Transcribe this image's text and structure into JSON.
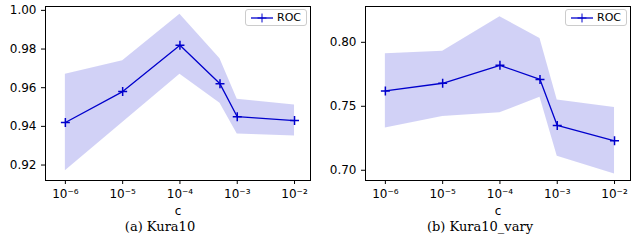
{
  "chart_data": [
    {
      "type": "line",
      "title": "(a) Kura10",
      "xlabel": "c",
      "log": "x",
      "grid": false,
      "legend": "upper right",
      "x": [
        1e-06,
        1e-05,
        0.0001,
        0.0005,
        0.001,
        0.01
      ],
      "xlim": [
        4.5e-07,
        0.019
      ],
      "xticks": [
        {
          "value": 1e-06,
          "label": "10⁻⁶"
        },
        {
          "value": 1e-05,
          "label": "10⁻⁵"
        },
        {
          "value": 0.0001,
          "label": "10⁻⁴"
        },
        {
          "value": 0.001,
          "label": "10⁻³"
        },
        {
          "value": 0.01,
          "label": "10⁻²"
        }
      ],
      "ylim": [
        0.912,
        1.002
      ],
      "yticks": [
        0.92,
        0.94,
        0.96,
        0.98,
        {
          "value": 1,
          "label": "1.00"
        }
      ],
      "series": [
        {
          "name": "ROC",
          "color": "#0000cc",
          "marker": "+",
          "line_style": "solid",
          "values": [
            0.942,
            0.958,
            0.982,
            0.962,
            0.945,
            0.943
          ],
          "lower": [
            0.917,
            0.942,
            0.967,
            0.952,
            0.936,
            0.935
          ],
          "upper": [
            0.967,
            0.974,
            0.998,
            0.975,
            0.954,
            0.951
          ]
        }
      ]
    },
    {
      "type": "line",
      "title": "(b) Kura10_vary",
      "xlabel": "c",
      "log": "x",
      "grid": false,
      "legend": "upper right",
      "x": [
        1e-06,
        1e-05,
        0.0001,
        0.0005,
        0.001,
        0.01
      ],
      "xlim": [
        4.5e-07,
        0.019
      ],
      "xticks": [
        {
          "value": 1e-06,
          "label": "10⁻⁶"
        },
        {
          "value": 1e-05,
          "label": "10⁻⁵"
        },
        {
          "value": 0.0001,
          "label": "10⁻⁴"
        },
        {
          "value": 0.001,
          "label": "10⁻³"
        },
        {
          "value": 0.01,
          "label": "10⁻²"
        }
      ],
      "ylim": [
        0.692,
        0.828
      ],
      "yticks": [
        {
          "value": 0.7,
          "label": "0.70"
        },
        0.75,
        {
          "value": 0.8,
          "label": "0.80"
        }
      ],
      "series": [
        {
          "name": "ROC",
          "color": "#0000cc",
          "marker": "+",
          "line_style": "solid",
          "values": [
            0.762,
            0.768,
            0.782,
            0.771,
            0.735,
            0.723
          ],
          "lower": [
            0.733,
            0.742,
            0.745,
            0.757,
            0.711,
            0.697
          ],
          "upper": [
            0.791,
            0.793,
            0.82,
            0.803,
            0.755,
            0.749
          ]
        }
      ]
    }
  ]
}
